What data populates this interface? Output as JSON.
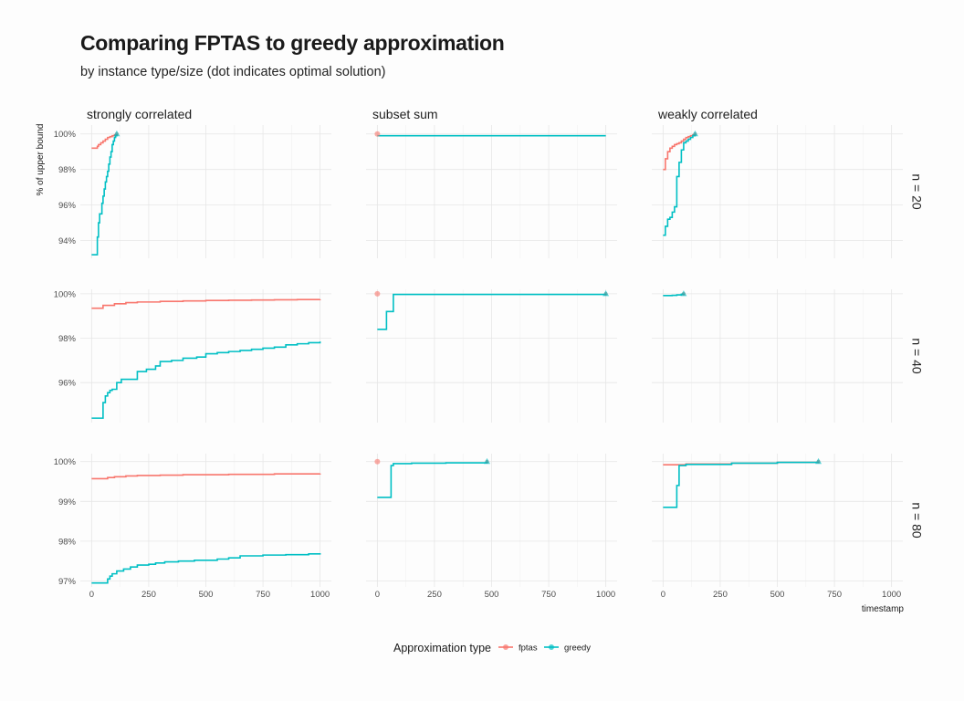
{
  "title": "Comparing FPTAS to greedy approximation",
  "subtitle": "by instance type/size (dot indicates optimal solution)",
  "chart_data": {
    "type": "line",
    "col_facets": [
      "strongly correlated",
      "subset sum",
      "weakly correlated"
    ],
    "row_facets": [
      "n = 20",
      "n = 40",
      "n = 80"
    ],
    "xlabel": "timestamp",
    "ylabel": "% of upper bound",
    "xlim": [
      0,
      1000
    ],
    "x_ticks": [
      0,
      250,
      500,
      750,
      1000
    ],
    "row_ylims": [
      [
        93,
        100.5
      ],
      [
        94.2,
        100.2
      ],
      [
        96.85,
        100.2
      ]
    ],
    "row_yticks": [
      [
        94,
        96,
        98,
        100
      ],
      [
        96,
        98,
        100
      ],
      [
        97,
        98,
        99,
        100
      ]
    ],
    "grid": true,
    "legend": {
      "title": "Approximation type",
      "position": "bottom",
      "entries": [
        {
          "name": "fptas",
          "color": "#F8766D"
        },
        {
          "name": "greedy",
          "color": "#00BFC4"
        }
      ]
    },
    "panels": [
      {
        "row": 0,
        "col": 0,
        "series": [
          {
            "name": "fptas",
            "x": [
              0,
              20,
              25,
              30,
              40,
              50,
              60,
              70,
              80,
              90,
              100,
              110
            ],
            "y": [
              99.2,
              99.2,
              99.3,
              99.4,
              99.5,
              99.6,
              99.7,
              99.8,
              99.85,
              99.9,
              99.95,
              100
            ]
          },
          {
            "name": "greedy",
            "x": [
              0,
              20,
              25,
              30,
              35,
              45,
              50,
              55,
              60,
              65,
              70,
              75,
              80,
              85,
              90,
              95,
              100,
              105,
              110
            ],
            "y": [
              93.2,
              93.2,
              94.2,
              95.0,
              95.5,
              96.1,
              96.5,
              96.9,
              97.3,
              97.6,
              97.9,
              98.3,
              98.7,
              99.0,
              99.4,
              99.6,
              99.8,
              99.9,
              100
            ]
          }
        ],
        "markers": [
          {
            "series": "greedy",
            "shape": "triangle",
            "x": 110,
            "y": 100
          }
        ]
      },
      {
        "row": 0,
        "col": 1,
        "series": [
          {
            "name": "greedy",
            "x": [
              0,
              1000
            ],
            "y": [
              99.9,
              99.9
            ]
          }
        ],
        "markers": [
          {
            "series": "fptas",
            "shape": "dot",
            "x": 0,
            "y": 100
          }
        ]
      },
      {
        "row": 0,
        "col": 2,
        "series": [
          {
            "name": "fptas",
            "x": [
              0,
              10,
              20,
              30,
              40,
              50,
              60,
              70,
              80,
              90,
              100,
              110,
              120,
              130,
              140
            ],
            "y": [
              98.0,
              98.6,
              99.0,
              99.2,
              99.3,
              99.4,
              99.45,
              99.5,
              99.6,
              99.7,
              99.8,
              99.85,
              99.9,
              99.95,
              100
            ]
          },
          {
            "name": "greedy",
            "x": [
              0,
              10,
              20,
              30,
              40,
              50,
              60,
              70,
              80,
              90,
              100,
              110,
              120,
              130,
              140
            ],
            "y": [
              94.3,
              94.8,
              95.2,
              95.3,
              95.6,
              95.9,
              97.6,
              98.4,
              99.1,
              99.5,
              99.6,
              99.7,
              99.8,
              99.9,
              100
            ]
          }
        ],
        "markers": [
          {
            "series": "greedy",
            "shape": "triangle",
            "x": 140,
            "y": 100
          }
        ]
      },
      {
        "row": 1,
        "col": 0,
        "series": [
          {
            "name": "fptas",
            "x": [
              0,
              40,
              50,
              100,
              150,
              200,
              300,
              400,
              500,
              600,
              700,
              800,
              900,
              1000
            ],
            "y": [
              99.35,
              99.35,
              99.48,
              99.55,
              99.6,
              99.63,
              99.66,
              99.68,
              99.7,
              99.71,
              99.72,
              99.73,
              99.74,
              99.75
            ]
          },
          {
            "name": "greedy",
            "x": [
              0,
              40,
              50,
              60,
              70,
              80,
              90,
              110,
              130,
              180,
              200,
              240,
              280,
              300,
              350,
              400,
              460,
              500,
              550,
              600,
              650,
              700,
              750,
              800,
              850,
              900,
              950,
              1000
            ],
            "y": [
              94.4,
              94.4,
              95.1,
              95.4,
              95.55,
              95.65,
              95.7,
              96.0,
              96.15,
              96.15,
              96.5,
              96.6,
              96.75,
              96.95,
              97.0,
              97.1,
              97.15,
              97.3,
              97.35,
              97.4,
              97.45,
              97.5,
              97.55,
              97.6,
              97.7,
              97.75,
              97.8,
              97.85
            ]
          }
        ],
        "markers": []
      },
      {
        "row": 1,
        "col": 1,
        "series": [
          {
            "name": "greedy",
            "x": [
              0,
              40,
              60,
              70,
              500,
              1000
            ],
            "y": [
              98.4,
              99.2,
              99.2,
              99.97,
              99.97,
              100
            ]
          }
        ],
        "markers": [
          {
            "series": "fptas",
            "shape": "dot",
            "x": 0,
            "y": 100
          },
          {
            "series": "greedy",
            "shape": "triangle",
            "x": 1000,
            "y": 100
          }
        ]
      },
      {
        "row": 1,
        "col": 2,
        "series": [
          {
            "name": "greedy",
            "x": [
              0,
              40,
              60,
              80,
              90
            ],
            "y": [
              99.92,
              99.93,
              99.95,
              99.98,
              100
            ]
          }
        ],
        "markers": [
          {
            "series": "greedy",
            "shape": "triangle",
            "x": 90,
            "y": 100
          }
        ]
      },
      {
        "row": 2,
        "col": 0,
        "series": [
          {
            "name": "fptas",
            "x": [
              0,
              60,
              70,
              100,
              150,
              200,
              300,
              400,
              500,
              600,
              700,
              800,
              900,
              1000
            ],
            "y": [
              99.57,
              99.57,
              99.6,
              99.62,
              99.64,
              99.65,
              99.66,
              99.67,
              99.67,
              99.68,
              99.68,
              99.69,
              99.69,
              99.7
            ]
          },
          {
            "name": "greedy",
            "x": [
              0,
              60,
              70,
              80,
              90,
              110,
              140,
              170,
              200,
              250,
              280,
              320,
              380,
              450,
              550,
              600,
              650,
              750,
              850,
              950,
              1000
            ],
            "y": [
              96.95,
              96.95,
              97.05,
              97.12,
              97.18,
              97.25,
              97.3,
              97.35,
              97.4,
              97.42,
              97.45,
              97.48,
              97.5,
              97.52,
              97.55,
              97.58,
              97.63,
              97.65,
              97.66,
              97.68,
              97.7
            ]
          }
        ],
        "markers": []
      },
      {
        "row": 2,
        "col": 1,
        "series": [
          {
            "name": "greedy",
            "x": [
              0,
              50,
              60,
              70,
              150,
              300,
              480
            ],
            "y": [
              99.1,
              99.1,
              99.9,
              99.95,
              99.96,
              99.97,
              100
            ]
          }
        ],
        "markers": [
          {
            "series": "fptas",
            "shape": "dot",
            "x": 0,
            "y": 100
          },
          {
            "series": "greedy",
            "shape": "triangle",
            "x": 480,
            "y": 100
          }
        ]
      },
      {
        "row": 2,
        "col": 2,
        "series": [
          {
            "name": "fptas",
            "x": [
              0,
              60,
              100,
              300,
              500,
              680
            ],
            "y": [
              99.92,
              99.92,
              99.94,
              99.96,
              99.98,
              100
            ]
          },
          {
            "name": "greedy",
            "x": [
              0,
              50,
              60,
              70,
              100,
              300,
              500,
              680
            ],
            "y": [
              98.85,
              98.85,
              99.4,
              99.9,
              99.93,
              99.96,
              99.98,
              100
            ]
          }
        ],
        "markers": [
          {
            "series": "greedy",
            "shape": "triangle",
            "x": 680,
            "y": 100
          }
        ]
      }
    ]
  }
}
